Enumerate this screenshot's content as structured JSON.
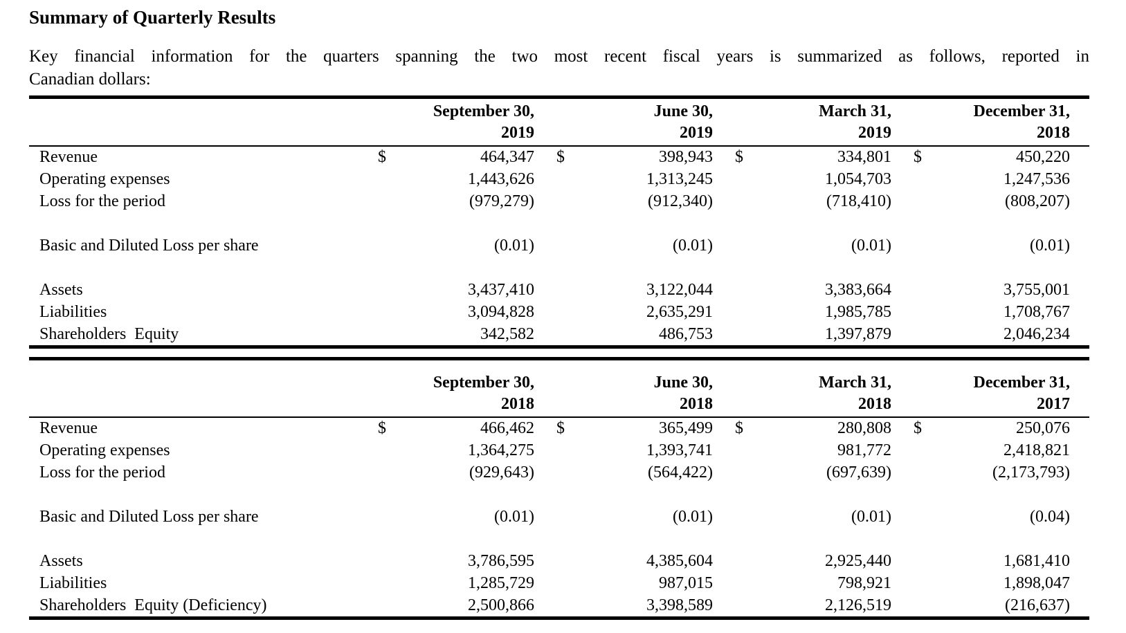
{
  "doc": {
    "title": "Summary of Quarterly Results",
    "intro_line1": "Key financial information for the quarters spanning the two most recent fiscal years is summarized as follows, reported in",
    "intro_line2": "Canadian dollars:"
  },
  "currency_symbol": "$",
  "tables": [
    {
      "name": "fiscal-2019-quarters",
      "columns": [
        {
          "month": "September 30,",
          "year": "2019"
        },
        {
          "month": "June 30,",
          "year": "2019"
        },
        {
          "month": "March 31,",
          "year": "2019"
        },
        {
          "month": "December 31,",
          "year": "2018"
        }
      ],
      "rows": [
        {
          "label": "Revenue",
          "show_dollar": true,
          "values": [
            "464,347",
            "398,943",
            "334,801",
            "450,220"
          ]
        },
        {
          "label": "Operating expenses",
          "show_dollar": false,
          "values": [
            "1,443,626",
            "1,313,245",
            "1,054,703",
            "1,247,536"
          ]
        },
        {
          "label": "Loss for the period",
          "show_dollar": false,
          "values": [
            "(979,279)",
            "(912,340)",
            "(718,410)",
            "(808,207)"
          ]
        },
        {
          "spacer": true
        },
        {
          "label": "Basic and Diluted Loss per share",
          "show_dollar": false,
          "values": [
            "(0.01)",
            "(0.01)",
            "(0.01)",
            "(0.01)"
          ]
        },
        {
          "spacer": true
        },
        {
          "label": "Assets",
          "show_dollar": false,
          "values": [
            "3,437,410",
            "3,122,044",
            "3,383,664",
            "3,755,001"
          ]
        },
        {
          "label": "Liabilities",
          "show_dollar": false,
          "values": [
            "3,094,828",
            "2,635,291",
            "1,985,785",
            "1,708,767"
          ]
        },
        {
          "label": "Shareholders  Equity",
          "show_dollar": false,
          "values": [
            "342,582",
            "486,753",
            "1,397,879",
            "2,046,234"
          ]
        }
      ]
    },
    {
      "name": "fiscal-2018-quarters",
      "columns": [
        {
          "month": "September 30,",
          "year": "2018"
        },
        {
          "month": "June 30,",
          "year": "2018"
        },
        {
          "month": "March 31,",
          "year": "2018"
        },
        {
          "month": "December 31,",
          "year": "2017"
        }
      ],
      "rows": [
        {
          "label": "Revenue",
          "show_dollar": true,
          "values": [
            "466,462",
            "365,499",
            "280,808",
            "250,076"
          ]
        },
        {
          "label": "Operating expenses",
          "show_dollar": false,
          "values": [
            "1,364,275",
            "1,393,741",
            "981,772",
            "2,418,821"
          ]
        },
        {
          "label": "Loss for the period",
          "show_dollar": false,
          "values": [
            "(929,643)",
            "(564,422)",
            "(697,639)",
            "(2,173,793)"
          ]
        },
        {
          "spacer": true
        },
        {
          "label": "Basic and Diluted Loss per share",
          "show_dollar": false,
          "values": [
            "(0.01)",
            "(0.01)",
            "(0.01)",
            "(0.04)"
          ]
        },
        {
          "spacer": true
        },
        {
          "label": "Assets",
          "show_dollar": false,
          "values": [
            "3,786,595",
            "4,385,604",
            "2,925,440",
            "1,681,410"
          ]
        },
        {
          "label": "Liabilities",
          "show_dollar": false,
          "values": [
            "1,285,729",
            "987,015",
            "798,921",
            "1,898,047"
          ]
        },
        {
          "label": "Shareholders  Equity (Deficiency)",
          "show_dollar": false,
          "values": [
            "2,500,866",
            "3,398,589",
            "2,126,519",
            "(216,637)"
          ]
        }
      ]
    }
  ]
}
